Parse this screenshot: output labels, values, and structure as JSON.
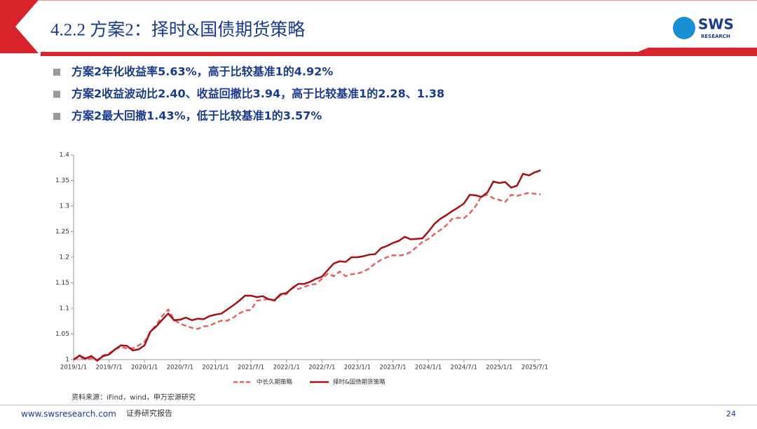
{
  "header": {
    "title": "4.2.2 方案2：择时&国债期货策略",
    "logo": "SWS",
    "logo_sub": "RESEARCH"
  },
  "bullets": [
    "方案2年化收益率5.63%，高于比较基准1的4.92%",
    "方案2收益波动比2.40、收益回撤比3.94，高于比较基准1的2.28、1.38",
    "方案2最大回撤1.43%，低于比较基准1的3.57%"
  ],
  "chart_data": {
    "type": "line",
    "categories": [
      "2019/1/1",
      null,
      null,
      null,
      null,
      null,
      "2019/7/1",
      null,
      null,
      null,
      null,
      null,
      "2020/1/1",
      null,
      null,
      null,
      null,
      null,
      "2020/7/1",
      null,
      null,
      null,
      null,
      null,
      "2021/1/1",
      null,
      null,
      null,
      null,
      null,
      "2021/7/1",
      null,
      null,
      null,
      null,
      null,
      "2022/1/1",
      null,
      null,
      null,
      null,
      null,
      "2022/7/1",
      null,
      null,
      null,
      null,
      null,
      "2023/1/1",
      null,
      null,
      null,
      null,
      null,
      "2023/7/1",
      null,
      null,
      null,
      null,
      null,
      "2024/1/1",
      null,
      null,
      null,
      null,
      null,
      "2024/7/1",
      null,
      null,
      null,
      null,
      null,
      "2025/1/1",
      null,
      null,
      null,
      null,
      null,
      "2025/7/1",
      null
    ],
    "series": [
      {
        "name": "中长久期策略",
        "color": "#e06666",
        "dash": true,
        "values": [
          1.0,
          1.005,
          1.0,
          1.003,
          0.999,
          1.008,
          1.012,
          1.02,
          1.025,
          1.022,
          1.022,
          1.028,
          1.035,
          1.055,
          1.068,
          1.085,
          1.098,
          1.078,
          1.07,
          1.066,
          1.062,
          1.06,
          1.065,
          1.066,
          1.072,
          1.076,
          1.076,
          1.082,
          1.09,
          1.096,
          1.097,
          1.115,
          1.117,
          1.118,
          1.115,
          1.126,
          1.128,
          1.14,
          1.138,
          1.142,
          1.146,
          1.148,
          1.158,
          1.168,
          1.163,
          1.172,
          1.163,
          1.167,
          1.168,
          1.172,
          1.178,
          1.188,
          1.195,
          1.2,
          1.204,
          1.203,
          1.205,
          1.21,
          1.22,
          1.23,
          1.236,
          1.245,
          1.253,
          1.262,
          1.275,
          1.277,
          1.276,
          1.286,
          1.3,
          1.32,
          1.322,
          1.315,
          1.312,
          1.308,
          1.322,
          1.32,
          1.323,
          1.326,
          1.324,
          1.323
        ]
      },
      {
        "name": "择时&国债期货策略",
        "color": "#a50f15",
        "dash": false,
        "values": [
          1.0,
          1.008,
          1.002,
          1.007,
          0.998,
          1.007,
          1.01,
          1.02,
          1.028,
          1.027,
          1.018,
          1.02,
          1.028,
          1.055,
          1.065,
          1.078,
          1.09,
          1.077,
          1.078,
          1.082,
          1.077,
          1.08,
          1.079,
          1.085,
          1.088,
          1.09,
          1.098,
          1.106,
          1.115,
          1.125,
          1.125,
          1.122,
          1.124,
          1.118,
          1.116,
          1.128,
          1.13,
          1.14,
          1.148,
          1.148,
          1.152,
          1.158,
          1.162,
          1.175,
          1.188,
          1.192,
          1.191,
          1.2,
          1.2,
          1.202,
          1.205,
          1.206,
          1.218,
          1.222,
          1.228,
          1.232,
          1.24,
          1.235,
          1.236,
          1.237,
          1.25,
          1.265,
          1.275,
          1.282,
          1.29,
          1.297,
          1.305,
          1.322,
          1.321,
          1.318,
          1.327,
          1.348,
          1.345,
          1.347,
          1.336,
          1.34,
          1.363,
          1.36,
          1.366,
          1.37
        ]
      }
    ],
    "ylim": [
      1,
      1.4
    ],
    "yticks": [
      1,
      1.05,
      1.1,
      1.15,
      1.2,
      1.25,
      1.3,
      1.35,
      1.4
    ],
    "source": "资料来源：iFind，wind，申万宏源研究"
  },
  "footer": {
    "url": "www.swsresearch.com",
    "label": "证券研究报告",
    "page": "24"
  }
}
